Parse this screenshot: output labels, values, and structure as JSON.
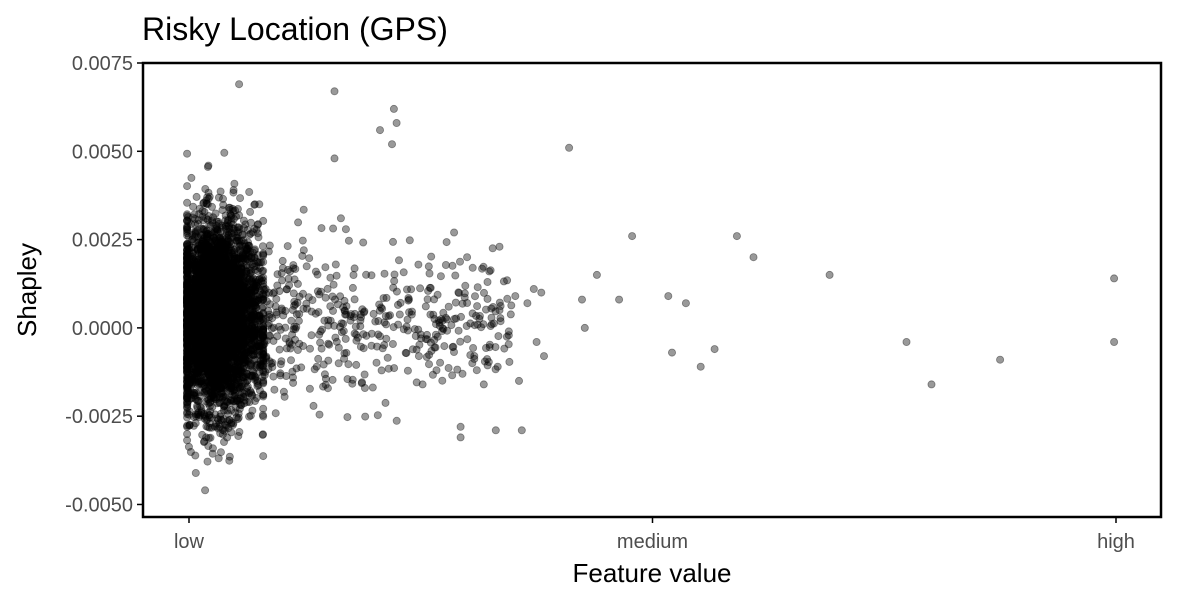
{
  "chart_data": {
    "type": "scatter",
    "title": "Risky Location (GPS)",
    "xlabel": "Feature value",
    "ylabel": "Shapley",
    "xlim": [
      0,
      1
    ],
    "ylim": [
      -0.0051,
      0.0075
    ],
    "x_ticks": [
      {
        "value": 0.0,
        "label": "low"
      },
      {
        "value": 0.5,
        "label": "medium"
      },
      {
        "value": 1.0,
        "label": "high"
      }
    ],
    "y_ticks": [
      {
        "value": 0.0075,
        "label": "0.0075"
      },
      {
        "value": 0.005,
        "label": "0.0050"
      },
      {
        "value": 0.0025,
        "label": "0.0025"
      },
      {
        "value": 0.0,
        "label": "0.0000"
      },
      {
        "value": -0.0025,
        "label": "-0.0025"
      },
      {
        "value": -0.005,
        "label": "-0.0050"
      }
    ],
    "grid": false,
    "point_color": "#000000",
    "point_opacity": 0.4,
    "series": [
      {
        "values": [
          [
            0.054,
            0.0069
          ],
          [
            0.157,
            0.0067
          ],
          [
            0.221,
            0.0062
          ],
          [
            0.206,
            0.0056
          ],
          [
            0.224,
            0.0058
          ],
          [
            0.219,
            0.0052
          ],
          [
            0.157,
            0.0048
          ],
          [
            0.41,
            0.0051
          ],
          [
            0.478,
            0.0026
          ],
          [
            0.591,
            0.0026
          ],
          [
            0.609,
            0.002
          ],
          [
            0.691,
            0.0015
          ],
          [
            0.998,
            0.0014
          ],
          [
            0.44,
            0.0015
          ],
          [
            0.424,
            0.0008
          ],
          [
            0.464,
            0.0008
          ],
          [
            0.517,
            0.0009
          ],
          [
            0.536,
            0.0007
          ],
          [
            0.427,
            0.0
          ],
          [
            0.521,
            -0.0007
          ],
          [
            0.552,
            -0.0011
          ],
          [
            0.567,
            -0.0006
          ],
          [
            0.774,
            -0.0004
          ],
          [
            0.998,
            -0.0004
          ],
          [
            0.875,
            -0.0009
          ],
          [
            0.801,
            -0.0016
          ],
          [
            0.293,
            -0.0028
          ],
          [
            0.293,
            -0.0031
          ],
          [
            0.331,
            -0.0029
          ],
          [
            0.359,
            -0.0029
          ],
          [
            0.372,
            0.0011
          ],
          [
            0.38,
            0.001
          ],
          [
            0.352,
            0.0009
          ],
          [
            0.365,
            0.0007
          ],
          [
            0.375,
            -0.0004
          ],
          [
            0.383,
            -0.0008
          ],
          [
            0.345,
            -0.0001
          ],
          [
            0.335,
            0.0005
          ],
          [
            0.322,
            0.0013
          ],
          [
            0.306,
            0.0017
          ],
          [
            0.286,
            0.0027
          ],
          [
            0.3,
            0.002
          ],
          [
            0.324,
            0.0016
          ],
          [
            0.248,
            -0.0008
          ],
          [
            0.267,
            -0.0012
          ],
          [
            0.252,
            -0.0016
          ],
          [
            0.295,
            -0.0013
          ],
          [
            0.318,
            -0.0016
          ],
          [
            0.333,
            -0.0011
          ],
          [
            0.356,
            -0.0015
          ]
        ]
      }
    ]
  }
}
